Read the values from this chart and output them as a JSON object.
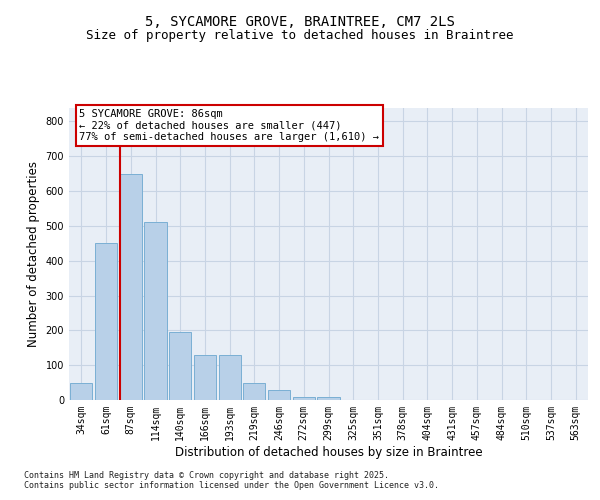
{
  "title1": "5, SYCAMORE GROVE, BRAINTREE, CM7 2LS",
  "title2": "Size of property relative to detached houses in Braintree",
  "xlabel": "Distribution of detached houses by size in Braintree",
  "ylabel": "Number of detached properties",
  "categories": [
    "34sqm",
    "61sqm",
    "87sqm",
    "114sqm",
    "140sqm",
    "166sqm",
    "193sqm",
    "219sqm",
    "246sqm",
    "272sqm",
    "299sqm",
    "325sqm",
    "351sqm",
    "378sqm",
    "404sqm",
    "431sqm",
    "457sqm",
    "484sqm",
    "510sqm",
    "537sqm",
    "563sqm"
  ],
  "values": [
    50,
    450,
    650,
    510,
    195,
    130,
    130,
    50,
    30,
    10,
    10,
    0,
    0,
    0,
    0,
    0,
    0,
    0,
    0,
    0,
    0
  ],
  "bar_color": "#b8d0e8",
  "bar_edge_color": "#7aafd4",
  "grid_color": "#c8d4e4",
  "background_color": "#e8eef6",
  "vline_color": "#cc0000",
  "annotation_text": "5 SYCAMORE GROVE: 86sqm\n← 22% of detached houses are smaller (447)\n77% of semi-detached houses are larger (1,610) →",
  "annotation_box_color": "#ffffff",
  "annotation_box_edge": "#cc0000",
  "ylim": [
    0,
    840
  ],
  "yticks": [
    0,
    100,
    200,
    300,
    400,
    500,
    600,
    700,
    800
  ],
  "footer1": "Contains HM Land Registry data © Crown copyright and database right 2025.",
  "footer2": "Contains public sector information licensed under the Open Government Licence v3.0.",
  "title1_fontsize": 10,
  "title2_fontsize": 9,
  "tick_fontsize": 7,
  "xlabel_fontsize": 8.5,
  "ylabel_fontsize": 8.5,
  "footer_fontsize": 6,
  "annot_fontsize": 7.5
}
